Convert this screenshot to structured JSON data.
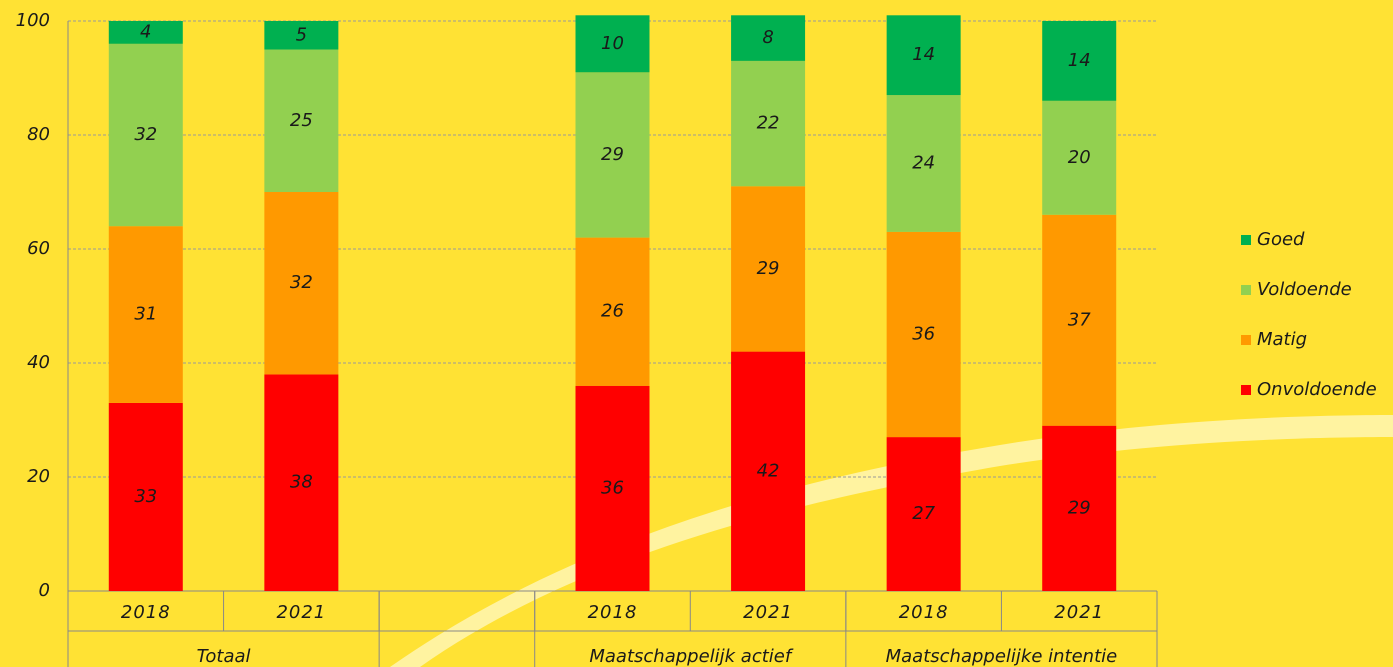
{
  "chart_data": {
    "type": "stacked_bar",
    "categories": [
      "2018",
      "2021",
      null,
      "2018",
      "2021",
      "2018",
      "2021"
    ],
    "groups": [
      "Totaal",
      null,
      "Maatschappelijk actief",
      "Maatschappelijke intentie"
    ],
    "series": [
      {
        "name": "Onvoldoende",
        "color": "#ff0000",
        "values": [
          33,
          38,
          null,
          36,
          42,
          27,
          29
        ]
      },
      {
        "name": "Matig",
        "color": "#ff9900",
        "values": [
          31,
          32,
          null,
          26,
          29,
          36,
          37
        ]
      },
      {
        "name": "Voldoende",
        "color": "#92d050",
        "values": [
          32,
          25,
          null,
          29,
          22,
          24,
          20
        ]
      },
      {
        "name": "Goed",
        "color": "#00b050",
        "values": [
          4,
          5,
          null,
          10,
          8,
          14,
          14
        ]
      }
    ],
    "ylim": [
      0,
      100
    ],
    "yticks": [
      0,
      20,
      40,
      60,
      80,
      100
    ],
    "grid": true,
    "legend": "right"
  }
}
